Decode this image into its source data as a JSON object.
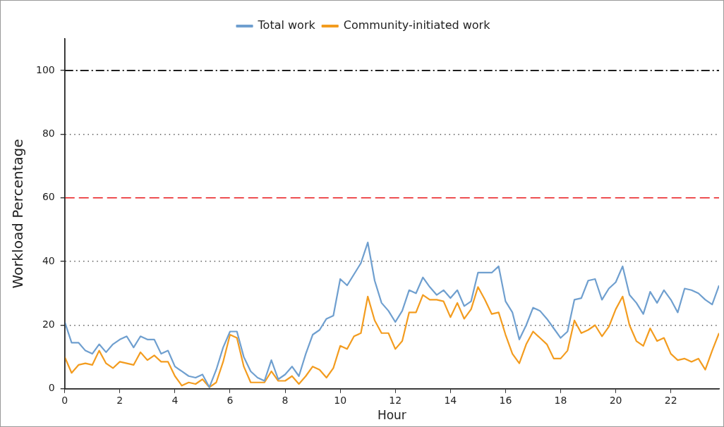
{
  "chart_data": {
    "type": "line",
    "xlabel": "Hour",
    "ylabel": "Workload Percentage",
    "x": [
      0,
      0.25,
      0.5,
      0.75,
      1,
      1.25,
      1.5,
      1.75,
      2,
      2.25,
      2.5,
      2.75,
      3,
      3.25,
      3.5,
      3.75,
      4,
      4.25,
      4.5,
      4.75,
      5,
      5.25,
      5.5,
      5.75,
      6,
      6.25,
      6.5,
      6.75,
      7,
      7.25,
      7.5,
      7.75,
      8,
      8.25,
      8.5,
      8.75,
      9,
      9.25,
      9.5,
      9.75,
      10,
      10.25,
      10.5,
      10.75,
      11,
      11.25,
      11.5,
      11.75,
      12,
      12.25,
      12.5,
      12.75,
      13,
      13.25,
      13.5,
      13.75,
      14,
      14.25,
      14.5,
      14.75,
      15,
      15.25,
      15.5,
      15.75,
      16,
      16.25,
      16.5,
      16.75,
      17,
      17.25,
      17.5,
      17.75,
      18,
      18.25,
      18.5,
      18.75,
      19,
      19.25,
      19.5,
      19.75,
      20,
      20.25,
      20.5,
      20.75,
      21,
      21.25,
      21.5,
      21.75,
      22,
      22.25,
      22.5,
      22.75,
      23,
      23.25,
      23.5,
      23.75
    ],
    "series": [
      {
        "name": "Total work",
        "color": "#6f9fcf",
        "values": [
          21,
          14.5,
          14.5,
          12,
          11,
          14,
          11.5,
          14,
          15.5,
          16.5,
          13,
          16.5,
          15.5,
          15.5,
          11,
          12,
          7,
          5.5,
          4,
          3.5,
          4.5,
          0.5,
          6,
          13,
          18,
          18,
          10,
          5.5,
          3.5,
          2.5,
          9,
          3,
          4.5,
          7,
          4,
          11,
          17,
          18.5,
          22,
          23,
          34.5,
          32.5,
          36,
          39.5,
          46,
          34,
          27,
          24.5,
          21,
          24.5,
          31,
          30,
          35,
          32,
          29.5,
          31,
          28.5,
          31,
          26,
          27.5,
          36.5,
          36.5,
          36.5,
          38.5,
          27.5,
          24,
          15.5,
          20,
          25.5,
          24.5,
          22,
          19,
          16,
          18,
          28,
          28.5,
          34,
          34.5,
          28,
          31.5,
          33.5,
          38.5,
          29.5,
          27,
          23.5,
          30.5,
          27,
          31,
          28,
          24,
          31.5,
          31,
          30,
          28,
          26.5,
          32.5
        ]
      },
      {
        "name": "Community-initiated work",
        "color": "#f39c1f",
        "values": [
          10,
          5,
          7.5,
          8,
          7.5,
          12,
          8,
          6.5,
          8.5,
          8,
          7.5,
          11.5,
          9,
          10.5,
          8.5,
          8.5,
          4,
          1,
          2,
          1.5,
          3,
          0.5,
          2,
          8.5,
          17,
          16,
          7,
          2,
          2,
          2,
          5.5,
          2.5,
          2.5,
          4,
          1.5,
          4,
          7,
          6,
          3.5,
          6.5,
          13.5,
          12.5,
          16.5,
          17.5,
          29,
          21.5,
          17.5,
          17.5,
          12.5,
          15,
          24,
          24,
          29.5,
          28,
          28,
          27.5,
          22.5,
          27,
          22,
          25,
          32,
          28,
          23.5,
          24,
          17,
          11,
          8,
          14,
          18,
          16,
          14,
          9.5,
          9.5,
          12,
          21.5,
          17.5,
          18.5,
          20,
          16.5,
          19.5,
          25,
          29,
          20,
          15,
          13.5,
          19,
          15,
          16,
          11,
          9,
          9.5,
          8.5,
          9.5,
          6,
          12,
          17.5
        ]
      }
    ],
    "xlim": [
      0,
      23.75
    ],
    "xticks": [
      0,
      2,
      4,
      6,
      8,
      10,
      12,
      14,
      16,
      18,
      20,
      22
    ],
    "ylim": [
      0,
      110
    ],
    "yticks": [
      0,
      20,
      40,
      60,
      80,
      100
    ],
    "ref_lines": [
      {
        "axis": "y",
        "value": 100,
        "color": "#000000",
        "line_style": "dashdot"
      },
      {
        "axis": "y",
        "value": 60,
        "color": "#e8191c",
        "line_style": "dashed"
      }
    ],
    "grid": "y",
    "legend": "top",
    "marker": "none",
    "line_style": "solid"
  }
}
